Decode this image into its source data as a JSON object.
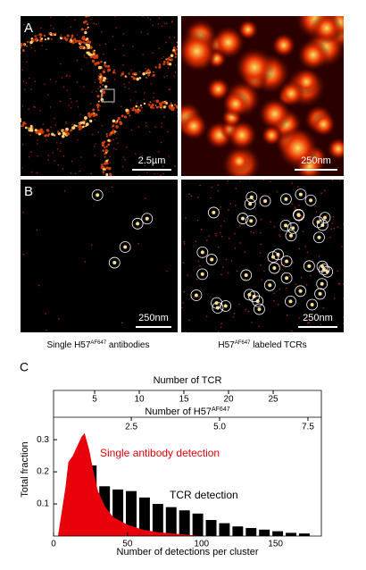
{
  "panels": [
    {
      "label": "A",
      "scale_bars": [
        "2.5µm",
        "250nm"
      ]
    },
    {
      "label": "B",
      "scale_bars": [
        "250nm",
        "250nm"
      ],
      "captions": [
        [
          "Single H57",
          "AF647",
          " antibodies"
        ],
        [
          "H57",
          "AF647",
          " labeled TCRs"
        ]
      ]
    },
    {
      "label": "C"
    }
  ],
  "chart_data": {
    "type": "histogram",
    "xlabel": "Number of detections per cluster",
    "ylabel": "Total fraction",
    "xlim": [
      0,
      181
    ],
    "xticks": [
      0,
      50,
      100,
      150
    ],
    "ylim": [
      0,
      0.37
    ],
    "yticks": [
      0.1,
      0.2,
      0.3
    ],
    "x2label": "Number of TCR",
    "x2lim": [
      0.4,
      30.4
    ],
    "x2ticks": [
      5,
      10,
      15,
      20,
      25
    ],
    "x3label": [
      "Number of H57",
      "AF647"
    ],
    "x3lim": [
      0.3,
      7.88
    ],
    "x3ticks": [
      2.5,
      {
        "value": 5,
        "label": "5.0"
      },
      7.5
    ],
    "series": [
      {
        "name": "Single antibody detection",
        "color": "#e8000b",
        "type": "area",
        "x": [
          3,
          8,
          10,
          13,
          16,
          19,
          21,
          24,
          27,
          30,
          35,
          40,
          50,
          60,
          70,
          80,
          90,
          100
        ],
        "values": [
          0,
          0.15,
          0.23,
          0.25,
          0.28,
          0.31,
          0.32,
          0.27,
          0.2,
          0.14,
          0.09,
          0.06,
          0.035,
          0.02,
          0.012,
          0.008,
          0.004,
          0
        ]
      },
      {
        "name": "TCR detection",
        "color": "#000000",
        "type": "histogram",
        "bins": [
          12,
          21,
          30,
          39,
          48,
          57,
          66,
          75,
          84,
          93,
          102,
          111,
          120,
          129,
          138,
          147,
          156,
          165,
          174
        ],
        "values": [
          0.12,
          0.22,
          0.155,
          0.145,
          0.14,
          0.12,
          0.1,
          0.09,
          0.08,
          0.07,
          0.05,
          0.04,
          0.03,
          0.025,
          0.02,
          0.015,
          0.01,
          0.008
        ]
      }
    ]
  }
}
